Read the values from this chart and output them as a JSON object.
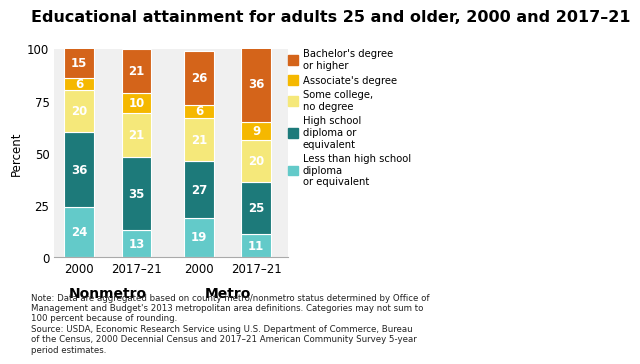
{
  "title": "Educational attainment for adults 25 and older, 2000 and 2017–21",
  "ylabel": "Percent",
  "ylim": [
    0,
    100
  ],
  "yticks": [
    0,
    25,
    50,
    75,
    100
  ],
  "bar_width": 0.52,
  "categories": [
    "2000",
    "2017–21",
    "2000",
    "2017–21"
  ],
  "group_labels": [
    "Nonmetro",
    "Metro"
  ],
  "layers": [
    {
      "label": "Less than high school\ndiploma\nor equivalent",
      "color": "#63cac9",
      "values": [
        24,
        13,
        19,
        11
      ]
    },
    {
      "label": "High school\ndiploma or\nequivalent",
      "color": "#1d7a7a",
      "values": [
        36,
        35,
        27,
        25
      ]
    },
    {
      "label": "Some college,\nno degree",
      "color": "#f5e87a",
      "values": [
        20,
        21,
        21,
        20
      ]
    },
    {
      "label": "Associate's degree",
      "color": "#f5b800",
      "values": [
        6,
        10,
        6,
        9
      ]
    },
    {
      "label": "Bachelor's degree\nor higher",
      "color": "#d4641a",
      "values": [
        15,
        21,
        26,
        36
      ]
    }
  ],
  "legend_order": [
    4,
    3,
    2,
    1,
    0
  ],
  "note_text": "Note: Data are aggregated based on county metro/nonmetro status determined by Office of\nManagement and Budget's 2013 metropolitan area definitions. Categories may not sum to\n100 percent because of rounding.\nSource: USDA, Economic Research Service using U.S. Department of Commerce, Bureau\nof the Census, 2000 Decennial Census and 2017–21 American Community Survey 5-year\nperiod estimates.",
  "background_color": "#f0f0f0",
  "label_font_size": 8.5,
  "title_font_size": 11.5,
  "note_font_size": 6.2,
  "group_label_font_size": 10
}
